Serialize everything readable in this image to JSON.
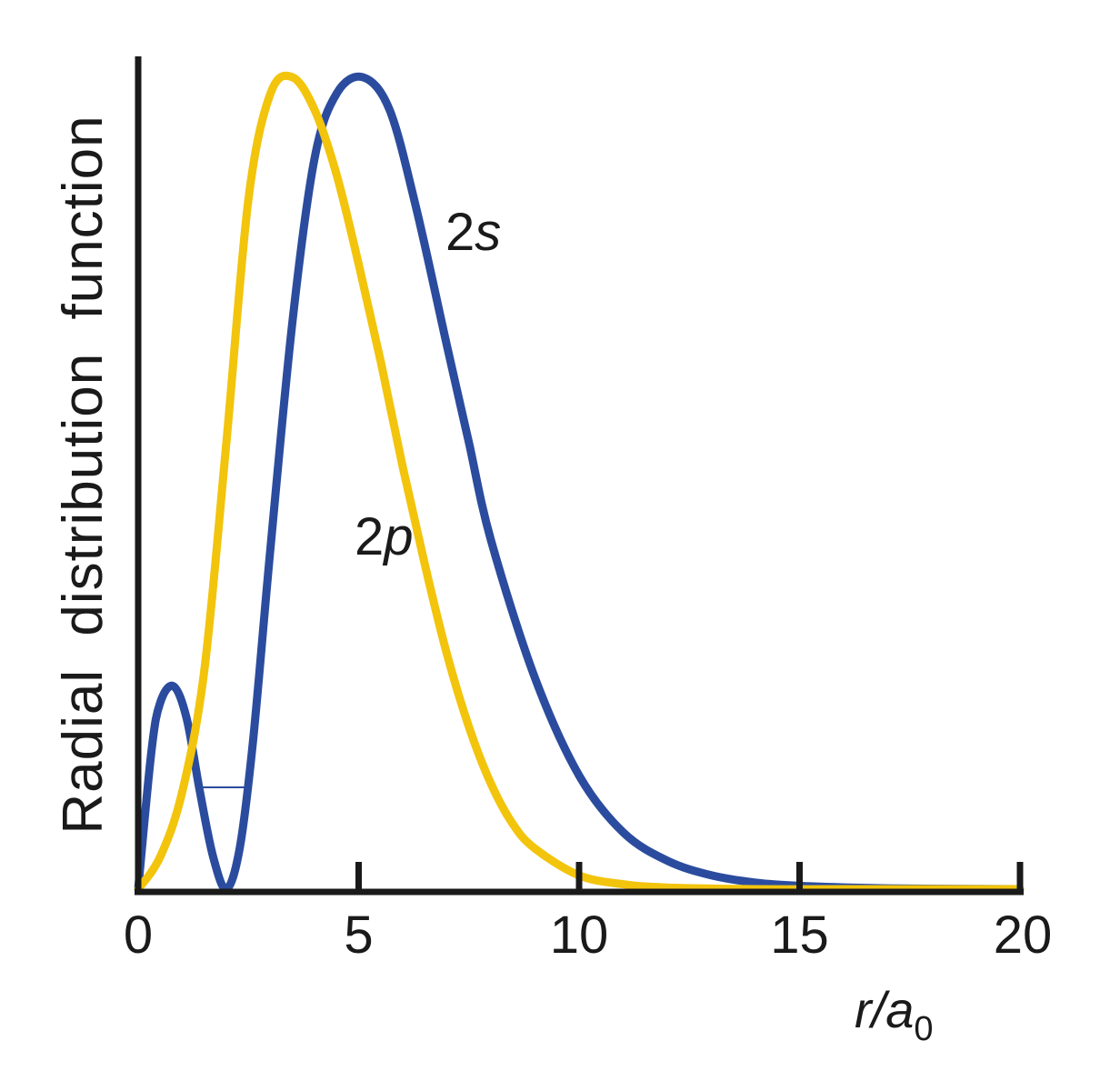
{
  "chart_data": {
    "type": "line",
    "title": "",
    "xlabel": "r/a0",
    "xlabel_main": "r/a",
    "xlabel_sub": "0",
    "ylabel": "Radial distribution function",
    "xlim": [
      0,
      20
    ],
    "ylim": [
      0,
      1
    ],
    "x_ticks": [
      0,
      5,
      10,
      15,
      20
    ],
    "x_tick_labels": [
      "0",
      "5",
      "10",
      "15",
      "20"
    ],
    "y_ticks": [],
    "grid": false,
    "legend": "inline labels",
    "series": [
      {
        "name": "2s",
        "label": "2s",
        "color": "#2b4c9e",
        "x": [
          0,
          0.3,
          0.5,
          0.8,
          1.1,
          1.4,
          1.7,
          2.0,
          2.3,
          2.6,
          3.0,
          3.5,
          4.0,
          4.5,
          5.1,
          5.7,
          6.3,
          7.0,
          7.5,
          8.0,
          9.0,
          10.0,
          11.0,
          12.0,
          13.0,
          14.0,
          15.0,
          17.0,
          20.0
        ],
        "y": [
          0,
          0.17,
          0.23,
          0.25,
          0.21,
          0.12,
          0.04,
          0,
          0.05,
          0.18,
          0.42,
          0.7,
          0.9,
          0.98,
          1.0,
          0.96,
          0.84,
          0.67,
          0.55,
          0.43,
          0.26,
          0.14,
          0.07,
          0.035,
          0.017,
          0.008,
          0.004,
          0.001,
          0
        ]
      },
      {
        "name": "2p",
        "label": "2p",
        "color": "#f2c40c",
        "x": [
          0,
          0.5,
          1.0,
          1.5,
          2.0,
          2.5,
          3.0,
          3.5,
          4.0,
          4.5,
          5.0,
          5.5,
          6.0,
          6.5,
          7.0,
          7.5,
          8.0,
          8.5,
          9.0,
          10.0,
          11.0,
          12.0,
          14.0,
          16.0,
          20.0
        ],
        "y": [
          0,
          0.04,
          0.12,
          0.27,
          0.55,
          0.85,
          0.98,
          1.0,
          0.96,
          0.88,
          0.77,
          0.65,
          0.52,
          0.4,
          0.29,
          0.2,
          0.13,
          0.08,
          0.05,
          0.017,
          0.006,
          0.002,
          0,
          0,
          0
        ]
      }
    ],
    "annotations": [
      {
        "text": "2s",
        "x": 7.3,
        "y": 0.8
      },
      {
        "text": "2p",
        "x": 5.5,
        "y": 0.43
      }
    ]
  },
  "axes": {
    "y_label": "Radial distribution function",
    "x_label_main": "r/a",
    "x_label_sub": "0"
  },
  "labels": {
    "s2": "2s",
    "p2": "2p",
    "s2_num": "2",
    "s2_letter": "s",
    "p2_num": "2",
    "p2_letter": "p"
  },
  "ticks": [
    "0",
    "5",
    "10",
    "15",
    "20"
  ]
}
